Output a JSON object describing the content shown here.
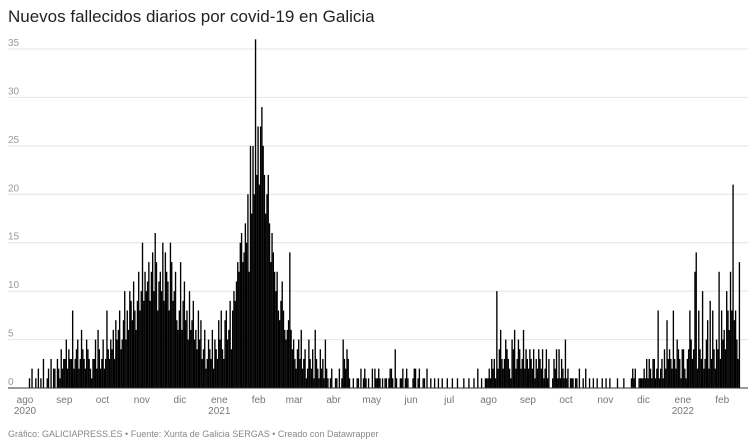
{
  "chart_data": {
    "type": "bar",
    "title": "Nuevos fallecidos diarios por covid-19 en Galicia",
    "xlabel": "",
    "ylabel": "",
    "ylim": [
      0,
      35
    ],
    "yticks": [
      0,
      5,
      10,
      15,
      20,
      25,
      30,
      35
    ],
    "grid": true,
    "bar_color": "#000000",
    "start_date": "2020-08-04",
    "x_ticks": [
      {
        "date": "2020-08-01",
        "label": "ago",
        "year": "2020"
      },
      {
        "date": "2020-09-01",
        "label": "sep"
      },
      {
        "date": "2020-10-01",
        "label": "oct"
      },
      {
        "date": "2020-11-01",
        "label": "nov"
      },
      {
        "date": "2020-12-01",
        "label": "dic"
      },
      {
        "date": "2021-01-01",
        "label": "ene",
        "year": "2021"
      },
      {
        "date": "2021-02-01",
        "label": "feb"
      },
      {
        "date": "2021-03-01",
        "label": "mar"
      },
      {
        "date": "2021-04-01",
        "label": "abr"
      },
      {
        "date": "2021-05-01",
        "label": "may"
      },
      {
        "date": "2021-06-01",
        "label": "jun"
      },
      {
        "date": "2021-07-01",
        "label": "jul"
      },
      {
        "date": "2021-08-01",
        "label": "ago"
      },
      {
        "date": "2021-09-01",
        "label": "sep"
      },
      {
        "date": "2021-10-01",
        "label": "oct"
      },
      {
        "date": "2021-11-01",
        "label": "nov"
      },
      {
        "date": "2021-12-01",
        "label": "dic"
      },
      {
        "date": "2022-01-01",
        "label": "ene",
        "year": "2022"
      },
      {
        "date": "2022-02-01",
        "label": "feb"
      }
    ],
    "values": [
      1,
      0,
      2,
      0,
      0,
      1,
      0,
      2,
      0,
      1,
      0,
      3,
      0,
      0,
      1,
      2,
      0,
      3,
      0,
      2,
      2,
      0,
      3,
      2,
      1,
      4,
      2,
      3,
      3,
      5,
      2,
      4,
      3,
      3,
      8,
      2,
      3,
      4,
      5,
      2,
      3,
      6,
      4,
      3,
      2,
      5,
      4,
      3,
      2,
      1,
      3,
      3,
      5,
      2,
      6,
      4,
      2,
      3,
      5,
      2,
      3,
      8,
      4,
      3,
      5,
      4,
      6,
      3,
      7,
      5,
      6,
      8,
      4,
      5,
      7,
      10,
      5,
      8,
      6,
      10,
      9,
      7,
      11,
      8,
      6,
      9,
      12,
      8,
      10,
      15,
      9,
      12,
      10,
      11,
      13,
      9,
      12,
      14,
      10,
      16,
      13,
      8,
      11,
      12,
      10,
      15,
      9,
      14,
      12,
      11,
      8,
      15,
      13,
      9,
      10,
      12,
      7,
      6,
      8,
      13,
      6,
      9,
      11,
      7,
      8,
      5,
      10,
      6,
      7,
      9,
      5,
      6,
      4,
      8,
      5,
      7,
      3,
      4,
      6,
      2,
      3,
      5,
      4,
      3,
      6,
      2,
      5,
      4,
      3,
      7,
      5,
      8,
      4,
      3,
      7,
      8,
      5,
      6,
      9,
      4,
      8,
      10,
      9,
      11,
      13,
      12,
      15,
      16,
      13,
      14,
      17,
      15,
      20,
      12,
      25,
      18,
      25,
      20,
      36,
      22,
      27,
      21,
      27,
      29,
      25,
      22,
      18,
      20,
      22,
      17,
      13,
      16,
      14,
      12,
      10,
      12,
      8,
      7,
      9,
      11,
      8,
      6,
      5,
      6,
      7,
      14,
      6,
      4,
      5,
      3,
      2,
      4,
      5,
      3,
      6,
      2,
      3,
      4,
      1,
      2,
      5,
      3,
      2,
      4,
      1,
      6,
      3,
      2,
      1,
      4,
      2,
      3,
      1,
      5,
      2,
      1,
      0,
      1,
      2,
      0,
      0,
      1,
      1,
      0,
      2,
      0,
      1,
      5,
      3,
      2,
      4,
      3,
      1,
      0,
      0,
      1,
      0,
      0,
      1,
      1,
      0,
      2,
      0,
      1,
      2,
      1,
      0,
      1,
      0,
      0,
      2,
      0,
      2,
      1,
      1,
      2,
      1,
      0,
      1,
      0,
      1,
      1,
      0,
      1,
      2,
      2,
      1,
      0,
      4,
      1,
      0,
      0,
      1,
      1,
      2,
      0,
      1,
      2,
      1,
      0,
      0,
      0,
      1,
      2,
      2,
      0,
      1,
      2,
      0,
      0,
      1,
      1,
      0,
      2,
      0,
      0,
      1,
      0,
      0,
      1,
      0,
      0,
      1,
      0,
      0,
      1,
      0,
      0,
      0,
      1,
      0,
      0,
      0,
      1,
      0,
      0,
      0,
      1,
      0,
      0,
      0,
      0,
      1,
      0,
      0,
      0,
      1,
      0,
      0,
      0,
      1,
      0,
      0,
      2,
      0,
      0,
      1,
      0,
      0,
      1,
      1,
      1,
      2,
      1,
      3,
      2,
      3,
      1,
      10,
      2,
      4,
      6,
      3,
      2,
      3,
      5,
      4,
      3,
      2,
      1,
      5,
      4,
      6,
      2,
      3,
      5,
      4,
      2,
      3,
      6,
      2,
      4,
      3,
      2,
      4,
      3,
      2,
      4,
      1,
      3,
      2,
      4,
      3,
      2,
      4,
      1,
      2,
      4,
      1,
      3,
      0,
      0,
      1,
      3,
      2,
      4,
      1,
      4,
      1,
      3,
      2,
      1,
      5,
      1,
      2,
      0,
      1,
      1,
      1,
      0,
      1,
      1,
      0,
      2,
      0,
      0,
      1,
      0,
      2,
      0,
      0,
      1,
      0,
      0,
      1,
      0,
      0,
      1,
      0,
      0,
      0,
      1,
      0,
      0,
      1,
      0,
      0,
      1,
      0,
      0,
      0,
      0,
      0,
      1,
      0,
      0,
      0,
      0,
      1,
      0,
      0,
      0,
      0,
      0,
      1,
      2,
      1,
      2,
      0,
      0,
      1,
      1,
      1,
      1,
      2,
      1,
      3,
      1,
      3,
      2,
      1,
      3,
      3,
      1,
      2,
      8,
      1,
      2,
      3,
      1,
      4,
      2,
      7,
      3,
      4,
      3,
      2,
      8,
      3,
      2,
      5,
      4,
      3,
      1,
      4,
      4,
      2,
      1,
      3,
      4,
      8,
      5,
      3,
      4,
      12,
      14,
      2,
      8,
      4,
      3,
      10,
      2,
      3,
      5,
      7,
      2,
      9,
      3,
      8,
      4,
      2,
      5,
      4,
      12,
      3,
      8,
      5,
      6,
      4,
      10,
      8,
      6,
      12,
      8,
      21,
      7,
      8,
      5,
      3,
      13
    ]
  },
  "footer": "Gráfico: GALICIAPRESS.ES • Fuente: Xunta de Galicia SERGAS • Creado con Datawrapper"
}
